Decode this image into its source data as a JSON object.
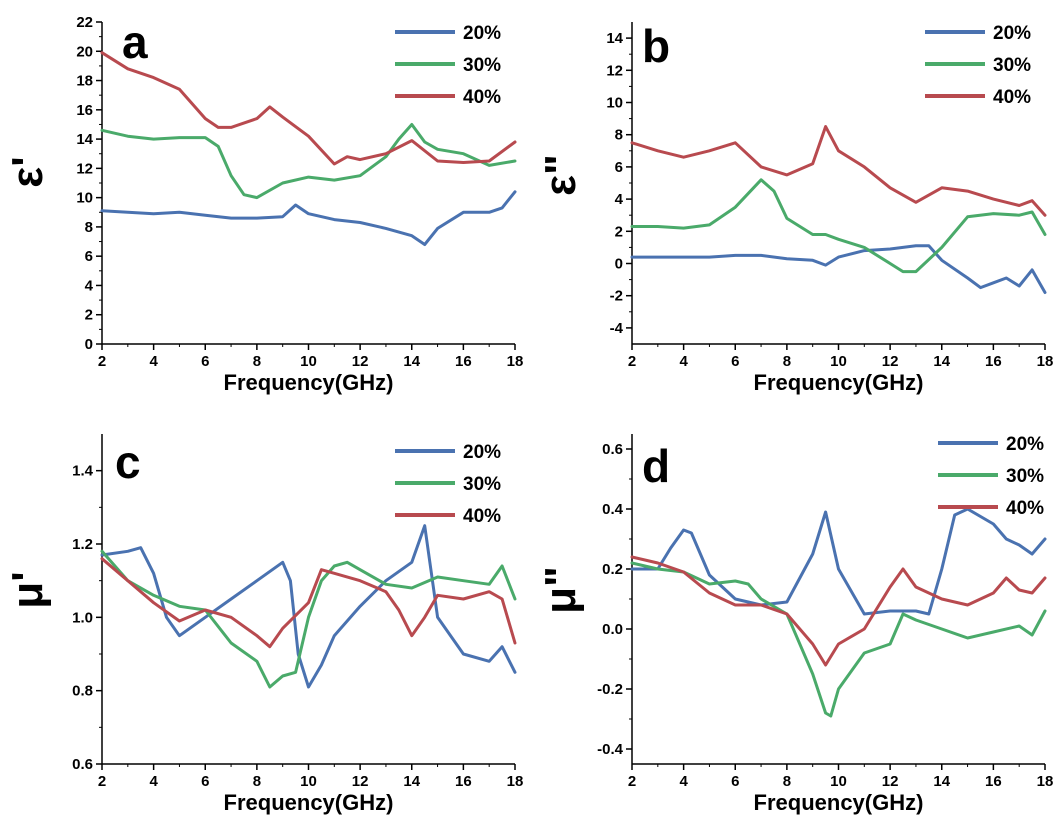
{
  "colors": {
    "20%": "#4a72b0",
    "30%": "#4aaa6a",
    "40%": "#b84a4f"
  },
  "chart_data": [
    {
      "type": "line",
      "panel_label": "a",
      "xlabel": "Frequency(GHz)",
      "ylabel": "ε'",
      "xlim": [
        2,
        18
      ],
      "ylim": [
        0,
        22
      ],
      "xticks": [
        "2",
        "4",
        "6",
        "8",
        "10",
        "12",
        "14",
        "16",
        "18"
      ],
      "yticks": [
        "0",
        "2",
        "4",
        "6",
        "8",
        "10",
        "12",
        "14",
        "16",
        "18",
        "20",
        "22"
      ],
      "legend": {
        "placement": "top-right",
        "entries": [
          "20%",
          "30%",
          "40%"
        ]
      },
      "grid": false,
      "series": [
        {
          "name": "20%",
          "x": [
            2,
            3,
            4,
            5,
            6,
            7,
            8,
            9,
            9.5,
            10,
            11,
            12,
            13,
            14,
            14.5,
            15,
            16,
            17,
            17.5,
            18
          ],
          "y": [
            9.1,
            9.0,
            8.9,
            9.0,
            8.8,
            8.6,
            8.6,
            8.7,
            9.5,
            8.9,
            8.5,
            8.3,
            7.9,
            7.4,
            6.8,
            7.9,
            9.0,
            9.0,
            9.3,
            10.4
          ]
        },
        {
          "name": "30%",
          "x": [
            2,
            3,
            4,
            5,
            6,
            6.5,
            7,
            7.5,
            8,
            9,
            10,
            11,
            12,
            13,
            13.5,
            14,
            14.5,
            15,
            16,
            17,
            18
          ],
          "y": [
            14.6,
            14.2,
            14.0,
            14.1,
            14.1,
            13.5,
            11.5,
            10.2,
            10.0,
            11.0,
            11.4,
            11.2,
            11.5,
            12.8,
            14.0,
            15.0,
            13.8,
            13.3,
            13.0,
            12.2,
            12.5
          ]
        },
        {
          "name": "40%",
          "x": [
            2,
            3,
            4,
            5,
            6,
            6.5,
            7,
            8,
            8.5,
            9,
            10,
            11,
            11.5,
            12,
            13,
            14,
            15,
            16,
            17,
            18
          ],
          "y": [
            19.9,
            18.8,
            18.2,
            17.4,
            15.4,
            14.8,
            14.8,
            15.4,
            16.2,
            15.5,
            14.2,
            12.3,
            12.8,
            12.6,
            13.0,
            13.9,
            12.5,
            12.4,
            12.5,
            13.8
          ]
        }
      ]
    },
    {
      "type": "line",
      "panel_label": "b",
      "xlabel": "Frequency(GHz)",
      "ylabel": "ε\"",
      "xlim": [
        2,
        18
      ],
      "ylim": [
        -5,
        15
      ],
      "xticks": [
        "2",
        "4",
        "6",
        "8",
        "10",
        "12",
        "14",
        "16",
        "18"
      ],
      "yticks": [
        "-4",
        "-2",
        "0",
        "2",
        "4",
        "6",
        "8",
        "10",
        "12",
        "14"
      ],
      "legend": {
        "placement": "top-right",
        "entries": [
          "20%",
          "30%",
          "40%"
        ]
      },
      "grid": false,
      "series": [
        {
          "name": "20%",
          "x": [
            2,
            3,
            4,
            5,
            6,
            7,
            8,
            9,
            9.5,
            10,
            11,
            12,
            13,
            13.5,
            14,
            15,
            15.5,
            16,
            16.5,
            17,
            17.5,
            18
          ],
          "y": [
            0.4,
            0.4,
            0.4,
            0.4,
            0.5,
            0.5,
            0.3,
            0.2,
            -0.1,
            0.4,
            0.8,
            0.9,
            1.1,
            1.1,
            0.2,
            -0.9,
            -1.5,
            -1.2,
            -0.9,
            -1.4,
            -0.4,
            -1.8
          ]
        },
        {
          "name": "30%",
          "x": [
            2,
            3,
            4,
            5,
            6,
            7,
            7.5,
            8,
            9,
            9.5,
            10,
            11,
            12,
            12.5,
            13,
            14,
            15,
            16,
            17,
            17.5,
            18
          ],
          "y": [
            2.3,
            2.3,
            2.2,
            2.4,
            3.5,
            5.2,
            4.5,
            2.8,
            1.8,
            1.8,
            1.5,
            1.0,
            0.0,
            -0.5,
            -0.5,
            1.0,
            2.9,
            3.1,
            3.0,
            3.2,
            1.8
          ]
        },
        {
          "name": "40%",
          "x": [
            2,
            3,
            4,
            5,
            6,
            7,
            8,
            9,
            9.5,
            10,
            11,
            12,
            13,
            14,
            15,
            16,
            17,
            17.5,
            18
          ],
          "y": [
            7.5,
            7.0,
            6.6,
            7.0,
            7.5,
            6.0,
            5.5,
            6.2,
            8.5,
            7.0,
            6.0,
            4.7,
            3.8,
            4.7,
            4.5,
            4.0,
            3.6,
            3.9,
            3.0
          ]
        }
      ]
    },
    {
      "type": "line",
      "panel_label": "c",
      "xlabel": "Frequency(GHz)",
      "ylabel": "μ'",
      "xlim": [
        2,
        18
      ],
      "ylim": [
        0.6,
        1.5
      ],
      "xticks": [
        "2",
        "4",
        "6",
        "8",
        "10",
        "12",
        "14",
        "16",
        "18"
      ],
      "yticks": [
        "0.6",
        "0.8",
        "1.0",
        "1.2",
        "1.4"
      ],
      "legend": {
        "placement": "top-right",
        "entries": [
          "20%",
          "30%",
          "40%"
        ]
      },
      "grid": false,
      "series": [
        {
          "name": "20%",
          "x": [
            2,
            3,
            3.5,
            4,
            4.5,
            5,
            6,
            7,
            8,
            9,
            9.3,
            9.6,
            10,
            10.5,
            11,
            12,
            13,
            14,
            14.5,
            15,
            16,
            17,
            17.5,
            18
          ],
          "y": [
            1.17,
            1.18,
            1.19,
            1.12,
            1.0,
            0.95,
            1.0,
            1.05,
            1.1,
            1.15,
            1.1,
            0.9,
            0.81,
            0.87,
            0.95,
            1.03,
            1.1,
            1.15,
            1.25,
            1.0,
            0.9,
            0.88,
            0.92,
            0.85
          ]
        },
        {
          "name": "30%",
          "x": [
            2,
            3,
            4,
            5,
            6,
            7,
            8,
            8.5,
            9,
            9.5,
            10,
            10.5,
            11,
            11.5,
            12,
            13,
            14,
            15,
            16,
            17,
            17.5,
            18
          ],
          "y": [
            1.18,
            1.1,
            1.06,
            1.03,
            1.02,
            0.93,
            0.88,
            0.81,
            0.84,
            0.85,
            1.0,
            1.1,
            1.14,
            1.15,
            1.13,
            1.09,
            1.08,
            1.11,
            1.1,
            1.09,
            1.14,
            1.05
          ]
        },
        {
          "name": "40%",
          "x": [
            2,
            3,
            4,
            5,
            6,
            7,
            8,
            8.5,
            9,
            10,
            10.5,
            11,
            12,
            13,
            13.5,
            14,
            14.5,
            15,
            16,
            17,
            17.5,
            18
          ],
          "y": [
            1.16,
            1.1,
            1.04,
            0.99,
            1.02,
            1.0,
            0.95,
            0.92,
            0.97,
            1.04,
            1.13,
            1.12,
            1.1,
            1.07,
            1.02,
            0.95,
            1.0,
            1.06,
            1.05,
            1.07,
            1.05,
            0.93
          ]
        }
      ]
    },
    {
      "type": "line",
      "panel_label": "d",
      "xlabel": "Frequency(GHz)",
      "ylabel": "μ\"",
      "xlim": [
        2,
        18
      ],
      "ylim": [
        -0.45,
        0.65
      ],
      "xticks": [
        "2",
        "4",
        "6",
        "8",
        "10",
        "12",
        "14",
        "16",
        "18"
      ],
      "yticks": [
        "-0.4",
        "-0.2",
        "0.0",
        "0.2",
        "0.4",
        "0.6"
      ],
      "legend": {
        "placement": "top-right",
        "entries": [
          "20%",
          "30%",
          "40%"
        ]
      },
      "grid": false,
      "series": [
        {
          "name": "20%",
          "x": [
            2,
            3,
            3.5,
            4,
            4.3,
            5,
            6,
            7,
            8,
            9,
            9.5,
            10,
            11,
            12,
            13,
            13.5,
            14,
            14.5,
            15,
            16,
            16.5,
            17,
            17.5,
            18
          ],
          "y": [
            0.2,
            0.2,
            0.27,
            0.33,
            0.32,
            0.18,
            0.1,
            0.08,
            0.09,
            0.25,
            0.39,
            0.2,
            0.05,
            0.06,
            0.06,
            0.05,
            0.2,
            0.38,
            0.4,
            0.35,
            0.3,
            0.28,
            0.25,
            0.3
          ]
        },
        {
          "name": "30%",
          "x": [
            2,
            3,
            4,
            5,
            6,
            6.5,
            7,
            8,
            9,
            9.5,
            9.7,
            10,
            11,
            12,
            12.5,
            13,
            14,
            15,
            16,
            17,
            17.5,
            18
          ],
          "y": [
            0.22,
            0.2,
            0.19,
            0.15,
            0.16,
            0.15,
            0.1,
            0.05,
            -0.15,
            -0.28,
            -0.29,
            -0.2,
            -0.08,
            -0.05,
            0.05,
            0.03,
            0.0,
            -0.03,
            -0.01,
            0.01,
            -0.02,
            0.06
          ]
        },
        {
          "name": "40%",
          "x": [
            2,
            3,
            4,
            5,
            6,
            7,
            8,
            9,
            9.5,
            10,
            11,
            12,
            12.5,
            13,
            14,
            15,
            16,
            16.5,
            17,
            17.5,
            18
          ],
          "y": [
            0.24,
            0.22,
            0.19,
            0.12,
            0.08,
            0.08,
            0.05,
            -0.05,
            -0.12,
            -0.05,
            0.0,
            0.14,
            0.2,
            0.14,
            0.1,
            0.08,
            0.12,
            0.17,
            0.13,
            0.12,
            0.17
          ]
        }
      ]
    }
  ]
}
